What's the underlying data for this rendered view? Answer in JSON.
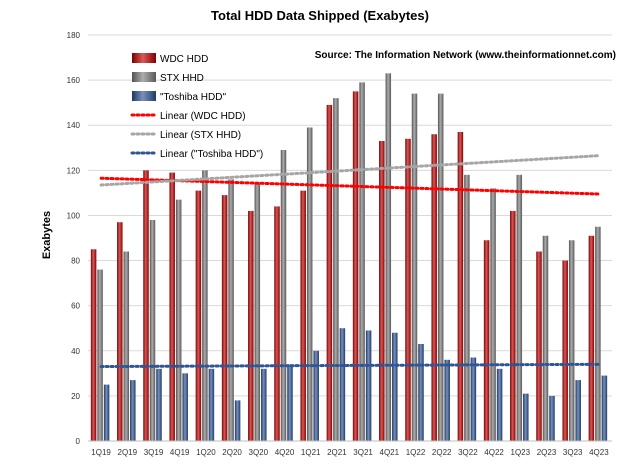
{
  "chart_data": {
    "type": "bar",
    "title": "Total HDD Data Shipped (Exabytes)",
    "source": "Source: The Information Network (www.theinformationnet.com)",
    "xlabel": "",
    "ylabel": "Exabytes",
    "ylim": [
      0,
      180
    ],
    "yticks": [
      0,
      20,
      40,
      60,
      80,
      100,
      120,
      140,
      160,
      180
    ],
    "grid": true,
    "categories": [
      "1Q19",
      "2Q19",
      "3Q19",
      "4Q19",
      "1Q20",
      "2Q20",
      "3Q20",
      "4Q20",
      "1Q21",
      "2Q21",
      "3Q21",
      "4Q21",
      "1Q22",
      "2Q22",
      "3Q22",
      "4Q22",
      "1Q23",
      "2Q23",
      "3Q23",
      "4Q23"
    ],
    "series": [
      {
        "name": "WDC HDD",
        "color": "#c00000",
        "values": [
          85,
          97,
          120,
          119,
          111,
          109,
          102,
          104,
          111,
          149,
          155,
          133,
          134,
          136,
          137,
          89,
          102,
          84,
          80,
          91
        ]
      },
      {
        "name": "STX HHD",
        "color": "#808080",
        "values": [
          76,
          84,
          98,
          107,
          120,
          116,
          114,
          129,
          139,
          152,
          159,
          163,
          154,
          154,
          118,
          112,
          118,
          91,
          89,
          95
        ]
      },
      {
        "name": "\"Toshiba HDD\"",
        "color": "#2f5597",
        "values": [
          25,
          27,
          32,
          30,
          32,
          18,
          32,
          34,
          40,
          50,
          49,
          48,
          43,
          36,
          37,
          32,
          21,
          20,
          27,
          29
        ]
      }
    ],
    "trendlines": [
      {
        "name": "Linear (WDC HDD)",
        "color": "#ff0000",
        "start": 116.5,
        "end": 109.5
      },
      {
        "name": "Linear (STX HHD)",
        "color": "#a6a6a6",
        "start": 113.5,
        "end": 126.5
      },
      {
        "name": "Linear (\"Toshiba HDD\")",
        "color": "#2f5597",
        "start": 33,
        "end": 34
      }
    ],
    "legend_position": "top-left"
  }
}
